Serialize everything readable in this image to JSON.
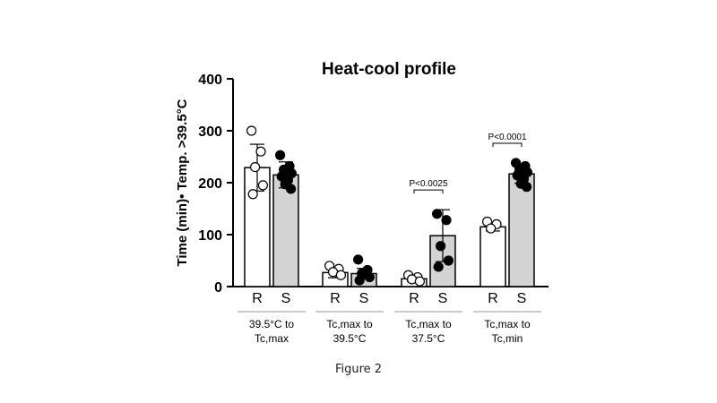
{
  "caption": "Figure 2",
  "chart_data": {
    "type": "bar",
    "title": "Heat-cool profile",
    "ylabel": "Time (min)• Temp. >39.5°C",
    "xlabel": "",
    "ylim": [
      0,
      400
    ],
    "yticks": [
      0,
      100,
      200,
      300,
      400
    ],
    "grid": false,
    "colors": {
      "R": "#ffffff",
      "S": "#d3d3d3",
      "points_R": "#ffffff",
      "points_S": "#000000"
    },
    "groups": [
      {
        "label": [
          "39.5°C to",
          "Tc,max"
        ],
        "bars": [
          {
            "name": "R",
            "mean": 229,
            "sd": 45,
            "points": [
              300,
              260,
              230,
              195,
              178
            ]
          },
          {
            "name": "S",
            "mean": 215,
            "sd": 25,
            "points": [
              253,
              232,
              225,
              218,
              212,
              205,
              197,
              188
            ]
          }
        ]
      },
      {
        "label": [
          "Tc,max to",
          "39.5°C"
        ],
        "bars": [
          {
            "name": "R",
            "mean": 27,
            "sd": 10,
            "points": [
              40,
              34,
              28,
              22
            ]
          },
          {
            "name": "S",
            "mean": 25,
            "sd": 10,
            "points": [
              52,
              32,
              25,
              18,
              12
            ]
          }
        ]
      },
      {
        "label": [
          "Tc,max to",
          "37.5°C"
        ],
        "bars": [
          {
            "name": "R",
            "mean": 15,
            "sd": 5,
            "points": [
              22,
              18,
              14,
              10
            ]
          },
          {
            "name": "S",
            "mean": 98,
            "sd": 50,
            "points": [
              140,
              128,
              78,
              50,
              38
            ]
          }
        ],
        "annotation": "P<0.0025"
      },
      {
        "label": [
          "Tc,max to",
          "Tc,min"
        ],
        "bars": [
          {
            "name": "R",
            "mean": 115,
            "sd": 8,
            "points": [
              125,
              120,
              112
            ]
          },
          {
            "name": "S",
            "mean": 217,
            "sd": 18,
            "points": [
              238,
              232,
              226,
              220,
              214,
              207,
              198,
              192
            ]
          }
        ],
        "annotation": "P<0.0001"
      }
    ]
  }
}
